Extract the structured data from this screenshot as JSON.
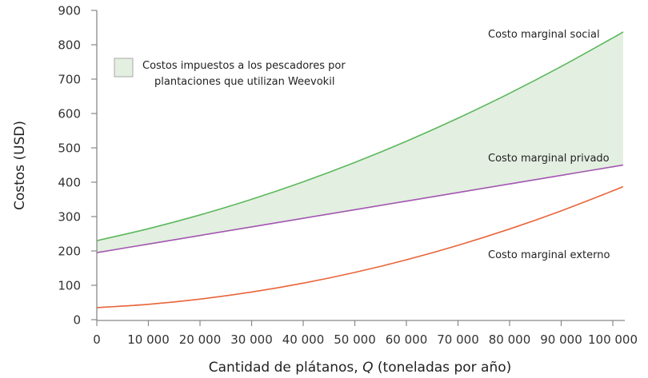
{
  "chart_data": {
    "type": "line",
    "title": "",
    "xlabel": "Cantidad de plátanos, Q (toneladas por año)",
    "xlabel_parts": [
      "Cantidad de plátanos, ",
      "Q",
      " (toneladas por año)"
    ],
    "ylabel": "Costos (USD)",
    "xlim": [
      0,
      102000
    ],
    "ylim": [
      0,
      900
    ],
    "grid": false,
    "x_ticks": [
      0,
      10000,
      20000,
      30000,
      40000,
      50000,
      60000,
      70000,
      80000,
      90000,
      100000
    ],
    "x_tick_labels": [
      "0",
      "10 000",
      "20 000",
      "30 000",
      "40 000",
      "50 000",
      "60 000",
      "70 000",
      "80 000",
      "90 000",
      "100 000"
    ],
    "y_ticks": [
      0,
      100,
      200,
      300,
      400,
      500,
      600,
      700,
      800,
      900
    ],
    "y_tick_labels": [
      "0",
      "100",
      "200",
      "300",
      "400",
      "500",
      "600",
      "700",
      "800",
      "900"
    ],
    "x": [
      0,
      10000,
      20000,
      30000,
      40000,
      50000,
      60000,
      70000,
      80000,
      90000,
      100000,
      102000
    ],
    "series": [
      {
        "name": "Costo marginal social",
        "color": "#5cb85c",
        "values": [
          230,
          264.7,
          304.8,
          350.3,
          401.2,
          457.5,
          519.2,
          586.3,
          658.8,
          736.7,
          820,
          837.3
        ]
      },
      {
        "name": "Costo marginal privado",
        "color": "#a356b0",
        "values": [
          195,
          220,
          245,
          270,
          295,
          320,
          345,
          370,
          395,
          420,
          445,
          450
        ]
      },
      {
        "name": "Costo marginal externo",
        "color": "#e8643a",
        "values": [
          35,
          44.7,
          59.8,
          80.3,
          106.2,
          137.5,
          174.2,
          216.3,
          263.8,
          316.7,
          375,
          387.3
        ]
      }
    ],
    "shaded_area": {
      "between": [
        "Costo marginal privado",
        "Costo marginal social"
      ],
      "color": "#e3efe1",
      "legend": "Costos impuestos a los pescadores por plantaciones que utilizan Weevokil"
    },
    "legend": {
      "position": "upper-left",
      "line1": "Costos impuestos a los pescadores por",
      "line2": "plantaciones que utilizan Weevokil"
    },
    "annotations": [
      {
        "text": "Costo marginal social",
        "x": 610,
        "y": 47
      },
      {
        "text": "Costo marginal privado",
        "x": 610,
        "y": 202
      },
      {
        "text": "Costo marginal externo",
        "x": 610,
        "y": 323
      }
    ]
  }
}
